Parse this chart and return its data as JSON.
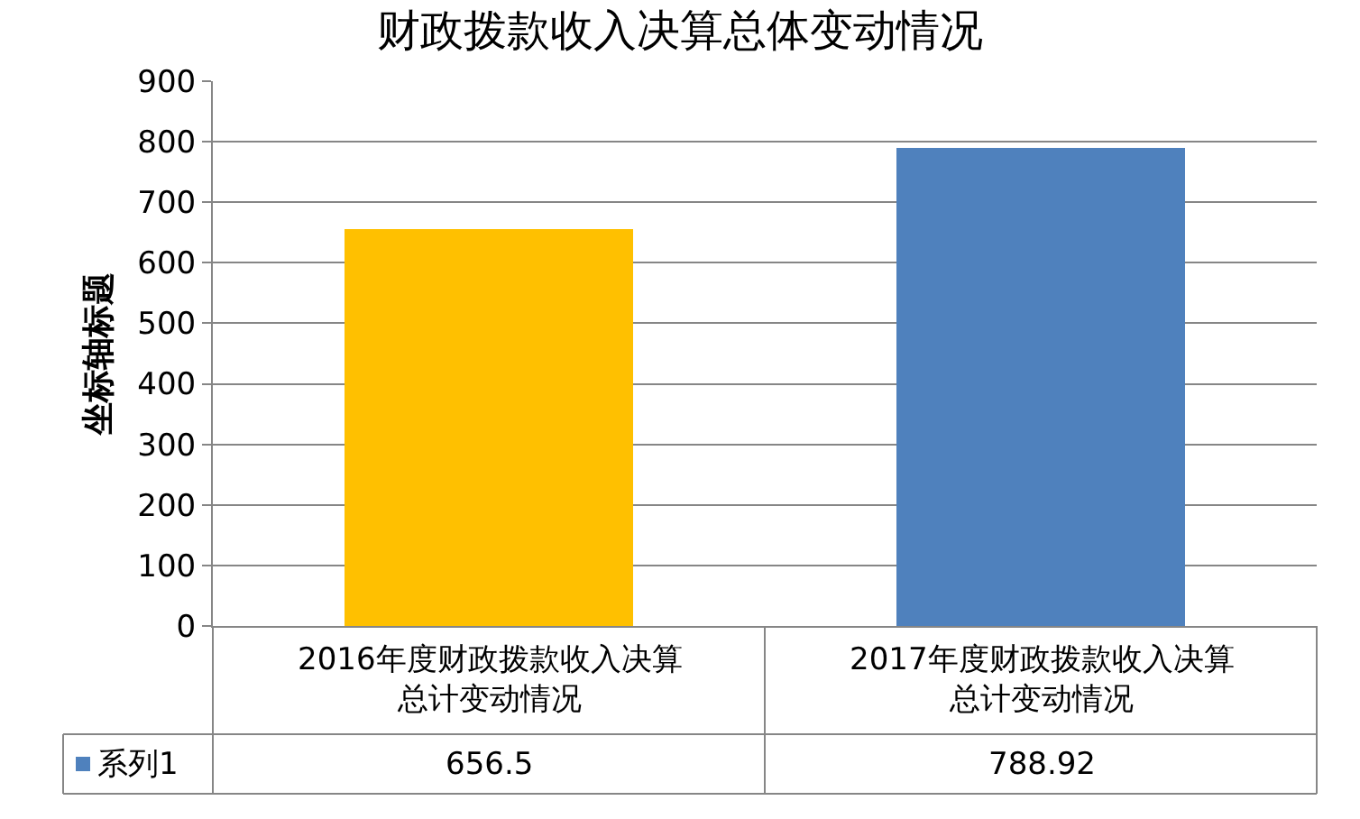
{
  "chart_data": {
    "type": "bar",
    "title": "财政拨款收入决算总体变动情况",
    "ylabel": "坐标轴标题",
    "categories": [
      "2016年度财政拨款收入决算总计变动情况",
      "2017年度财政拨款收入决算总计变动情况"
    ],
    "series": [
      {
        "name": "系列1",
        "color": "#4f81bd",
        "colors": [
          "#ffc000",
          "#4f81bd"
        ],
        "values": [
          656.5,
          788.92
        ]
      }
    ],
    "ylim": [
      0,
      900
    ],
    "yticks": [
      0,
      100,
      200,
      300,
      400,
      500,
      600,
      700,
      800,
      900
    ],
    "grid": "y",
    "data_labels": true
  }
}
